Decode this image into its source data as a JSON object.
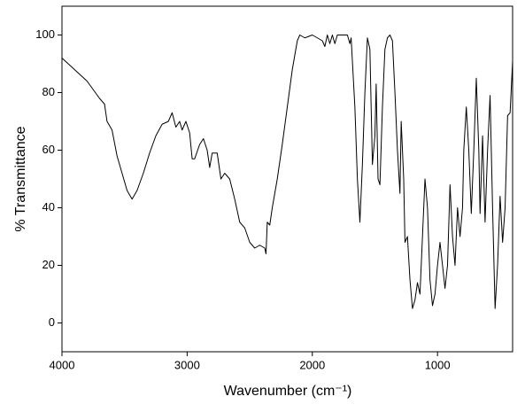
{
  "chart_data": {
    "type": "line",
    "xlabel": "Wavenumber (cm⁻¹)",
    "ylabel": "% Transmittance",
    "xlim": [
      4000,
      400
    ],
    "ylim": [
      -10,
      110
    ],
    "xticks": [
      4000,
      3000,
      2000,
      1000
    ],
    "yticks": [
      0,
      20,
      40,
      60,
      80,
      100
    ],
    "series": [
      {
        "color": "#000000",
        "x": [
          4000,
          3800,
          3700,
          3660,
          3640,
          3600,
          3560,
          3520,
          3480,
          3440,
          3400,
          3350,
          3300,
          3250,
          3200,
          3150,
          3120,
          3090,
          3060,
          3040,
          3010,
          2980,
          2960,
          2940,
          2900,
          2870,
          2840,
          2820,
          2800,
          2760,
          2730,
          2700,
          2660,
          2620,
          2580,
          2540,
          2500,
          2460,
          2420,
          2380,
          2370,
          2360,
          2340,
          2320,
          2280,
          2240,
          2200,
          2160,
          2120,
          2100,
          2060,
          2000,
          1960,
          1920,
          1900,
          1880,
          1860,
          1840,
          1820,
          1800,
          1760,
          1720,
          1700,
          1690,
          1660,
          1640,
          1620,
          1600,
          1580,
          1560,
          1540,
          1520,
          1500,
          1490,
          1475,
          1460,
          1440,
          1420,
          1400,
          1380,
          1360,
          1340,
          1320,
          1300,
          1290,
          1270,
          1260,
          1240,
          1220,
          1200,
          1180,
          1160,
          1140,
          1120,
          1100,
          1080,
          1060,
          1040,
          1020,
          1000,
          980,
          960,
          940,
          920,
          900,
          880,
          860,
          840,
          820,
          800,
          790,
          770,
          750,
          730,
          710,
          690,
          670,
          660,
          640,
          620,
          600,
          580,
          560,
          540,
          520,
          500,
          480,
          460,
          440,
          420,
          400
        ],
        "values": [
          92,
          84,
          78,
          76,
          70,
          67,
          58,
          52,
          46,
          43,
          46,
          52,
          59,
          65,
          69,
          70,
          73,
          68,
          70,
          67,
          70,
          66,
          57,
          57,
          62,
          64,
          60,
          54,
          59,
          59,
          50,
          52,
          50,
          43,
          35,
          33,
          28,
          26,
          27,
          26,
          24,
          35,
          34,
          40,
          50,
          62,
          75,
          88,
          98,
          100,
          99,
          100,
          99,
          98,
          96,
          100,
          97,
          100,
          97,
          100,
          100,
          100,
          97,
          99,
          75,
          50,
          35,
          55,
          80,
          99,
          95,
          55,
          65,
          83,
          50,
          48,
          75,
          95,
          99,
          100,
          98,
          80,
          60,
          45,
          70,
          50,
          28,
          30,
          15,
          5,
          8,
          14,
          10,
          30,
          50,
          40,
          15,
          6,
          10,
          20,
          28,
          20,
          12,
          20,
          48,
          30,
          20,
          40,
          30,
          40,
          60,
          75,
          60,
          38,
          60,
          85,
          60,
          38,
          65,
          35,
          60,
          79,
          40,
          5,
          20,
          44,
          28,
          40,
          72,
          73,
          91
        ]
      }
    ]
  }
}
